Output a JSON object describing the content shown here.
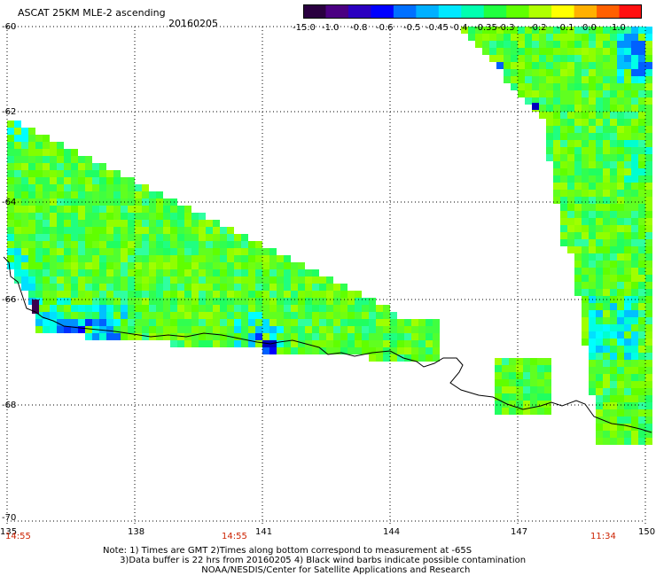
{
  "title": "ASCAT 25KM MLE-2 ascending",
  "date": "20160205",
  "colorbar": {
    "labels": [
      "-15.0",
      "-1.0",
      "-0.8",
      "-0.6",
      "-0.5",
      "-0.45",
      "-0.4",
      "-0.35",
      "-0.3",
      "-0.2",
      "-0.1",
      "0.0",
      "1.0"
    ],
    "colors": [
      "#2a0040",
      "#4b0082",
      "#2b00c0",
      "#0000ff",
      "#0070ff",
      "#00b0ff",
      "#00e8ff",
      "#00ffb0",
      "#20ff40",
      "#60ff00",
      "#b0ff00",
      "#ffff00",
      "#ffb000",
      "#ff6000",
      "#ff1010"
    ]
  },
  "axes": {
    "lat_labels": [
      "-60",
      "-62",
      "-64",
      "-66",
      "-68",
      "-70"
    ],
    "lon_labels": [
      "135",
      "138",
      "141",
      "144",
      "147",
      "150"
    ]
  },
  "times": [
    "14:55",
    "14:55",
    "11:34"
  ],
  "notes": [
    "Note: 1) Times are GMT 2)Times along bottom correspond to measurement at -65S",
    "      3)Data buffer is 22 hrs from 20160205 4) Black wind barbs indicate possible contamination",
    "                                   NOAA/NESDIS/Center for Satellite Applications and Research"
  ]
}
